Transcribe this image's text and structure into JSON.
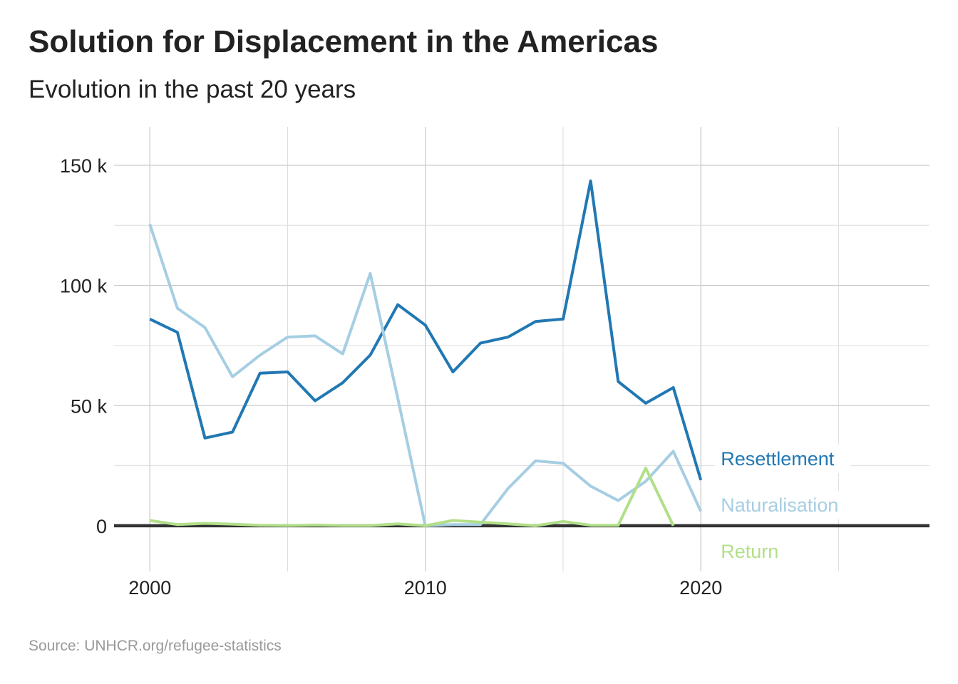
{
  "title": "Solution for Displacement in the Americas",
  "subtitle": "Evolution in the past 20 years",
  "caption": "Source: UNHCR.org/refugee-statistics",
  "chart_data": {
    "type": "line",
    "title": "Solution for Displacement in the Americas",
    "subtitle": "Evolution in the past 20 years",
    "xlabel": "",
    "ylabel": "",
    "x": [
      2000,
      2001,
      2002,
      2003,
      2004,
      2005,
      2006,
      2007,
      2008,
      2009,
      2010,
      2011,
      2012,
      2013,
      2014,
      2015,
      2016,
      2017,
      2018,
      2019,
      2020
    ],
    "xlim": [
      1998.7,
      2028.3
    ],
    "ylim": [
      -19000,
      166000
    ],
    "x_ticks": [
      2000,
      2010,
      2020
    ],
    "x_tick_labels": [
      "2000",
      "2010",
      "2020"
    ],
    "x_minor_ticks": [
      2005,
      2015,
      2025
    ],
    "y_ticks": [
      0,
      50000,
      100000,
      150000
    ],
    "y_tick_labels": [
      "0",
      "50 k",
      "100 k",
      "150 k"
    ],
    "y_minor_ticks": [
      25000,
      75000,
      125000
    ],
    "grid": true,
    "legend": "direct labels at line ends (right)",
    "series": [
      {
        "name": "Resettlement",
        "color": "#2178b3",
        "values": [
          86000,
          80500,
          36500,
          39000,
          63500,
          64000,
          52000,
          59500,
          71000,
          92000,
          83500,
          64000,
          76000,
          78500,
          85000,
          86000,
          143500,
          60000,
          51000,
          57500,
          19000
        ]
      },
      {
        "name": "Naturalisation",
        "color": "#a6cee3",
        "values": [
          125500,
          90500,
          82500,
          62000,
          71000,
          78500,
          79000,
          71500,
          105000,
          53000,
          0,
          500,
          500,
          15500,
          27000,
          26000,
          16500,
          10500,
          18500,
          31000,
          6000
        ]
      },
      {
        "name": "Return",
        "color": "#b2df8a",
        "values": [
          2200,
          500,
          1000,
          700,
          200,
          100,
          300,
          100,
          100,
          800,
          0,
          2200,
          1500,
          800,
          0,
          1800,
          200,
          200,
          24000,
          0,
          null
        ]
      }
    ]
  }
}
